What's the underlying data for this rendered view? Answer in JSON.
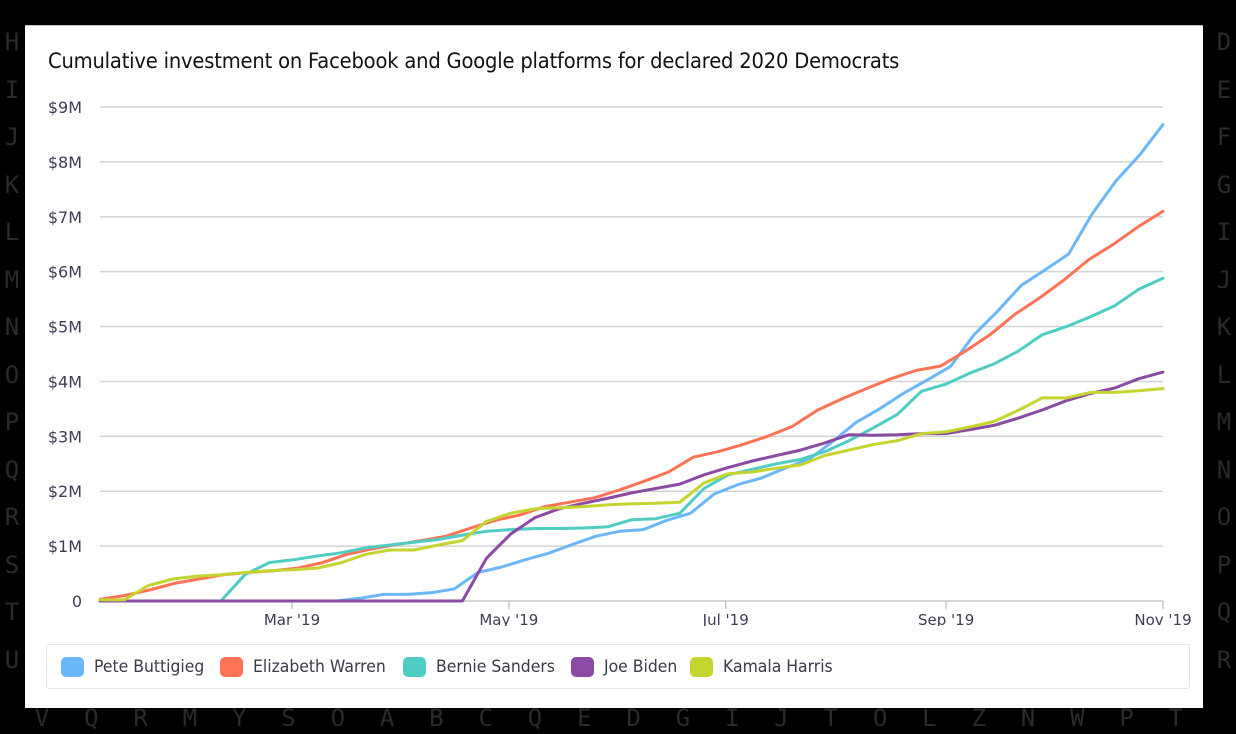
{
  "background_letters": {
    "left": [
      "H",
      "I",
      "J",
      "K",
      "L",
      "M",
      "N",
      "O",
      "P",
      "Q",
      "R",
      "S",
      "T",
      "U"
    ],
    "right": [
      "D",
      "E",
      "F",
      "G",
      "I",
      "J",
      "K",
      "L",
      "M",
      "N",
      "O",
      "P",
      "Q",
      "R"
    ],
    "bottom": [
      "V",
      "Q",
      "R",
      "M",
      "Y",
      "S",
      "O",
      "A",
      "B",
      "C",
      "Q",
      "E",
      "D",
      "G",
      "I",
      "J",
      "T",
      "O",
      "L",
      "Z",
      "N",
      "W",
      "P",
      "T"
    ]
  },
  "chart_data": {
    "type": "line",
    "title": "Cumulative investment on Facebook and Google platforms for declared 2020 Democrats",
    "xlabel": "",
    "ylabel": "",
    "x_unit": "week starting",
    "x_start": "2019-01-06",
    "x_step_days": 7,
    "x_tick_labels": [
      {
        "label": "Mar '19",
        "date": "2019-03-01"
      },
      {
        "label": "May '19",
        "date": "2019-05-01"
      },
      {
        "label": "Jul '19",
        "date": "2019-07-01"
      },
      {
        "label": "Sep '19",
        "date": "2019-09-01"
      },
      {
        "label": "Nov '19",
        "date": "2019-11-01"
      }
    ],
    "y_tick_labels": [
      "0",
      "$1M",
      "$2M",
      "$3M",
      "$4M",
      "$5M",
      "$6M",
      "$7M",
      "$8M",
      "$9M"
    ],
    "ylim": [
      0,
      9
    ],
    "y_unit": "millions USD",
    "grid": true,
    "legend_position": "bottom",
    "series": [
      {
        "name": "Pete Buttigieg",
        "color": "#6bb7fa",
        "values": [
          0,
          0,
          0,
          0,
          0,
          0,
          0,
          0,
          0,
          0,
          0,
          0.05,
          0.12,
          0.12,
          0.15,
          0.22,
          0.52,
          0.62,
          0.75,
          0.87,
          1.03,
          1.18,
          1.27,
          1.3,
          1.47,
          1.6,
          1.95,
          2.12,
          2.24,
          2.42,
          2.58,
          2.9,
          3.25,
          3.5,
          3.78,
          4.02,
          4.27,
          4.85,
          5.28,
          5.75,
          6.03,
          6.32,
          7.05,
          7.65,
          8.12,
          8.68
        ]
      },
      {
        "name": "Elizabeth Warren",
        "color": "#fe7356",
        "values": [
          0.03,
          0.1,
          0.2,
          0.32,
          0.4,
          0.48,
          0.52,
          0.55,
          0.6,
          0.7,
          0.85,
          0.95,
          1.03,
          1.1,
          1.18,
          1.33,
          1.47,
          1.57,
          1.72,
          1.8,
          1.88,
          2.02,
          2.18,
          2.35,
          2.62,
          2.72,
          2.85,
          3.0,
          3.18,
          3.47,
          3.68,
          3.87,
          4.05,
          4.2,
          4.28,
          4.55,
          4.85,
          5.22,
          5.52,
          5.85,
          6.22,
          6.5,
          6.82,
          7.1
        ]
      },
      {
        "name": "Bernie Sanders",
        "color": "#4fcdc4",
        "values": [
          0,
          0,
          0,
          0,
          0,
          0,
          0.48,
          0.7,
          0.75,
          0.82,
          0.88,
          0.97,
          1.02,
          1.07,
          1.12,
          1.2,
          1.27,
          1.3,
          1.32,
          1.32,
          1.33,
          1.35,
          1.48,
          1.5,
          1.6,
          2.05,
          2.3,
          2.4,
          2.5,
          2.58,
          2.72,
          2.92,
          3.15,
          3.4,
          3.82,
          3.95,
          4.15,
          4.32,
          4.55,
          4.85,
          5.0,
          5.18,
          5.38,
          5.68,
          5.88
        ]
      },
      {
        "name": "Joe Biden",
        "color": "#8b4aa3",
        "values": [
          0,
          0,
          0,
          0,
          0,
          0,
          0,
          0,
          0,
          0,
          0,
          0,
          0,
          0,
          0,
          0,
          0.78,
          1.22,
          1.52,
          1.68,
          1.78,
          1.87,
          1.97,
          2.05,
          2.13,
          2.3,
          2.43,
          2.55,
          2.65,
          2.75,
          2.88,
          3.03,
          3.02,
          3.03,
          3.05,
          3.05,
          3.12,
          3.2,
          3.33,
          3.48,
          3.65,
          3.78,
          3.88,
          4.05,
          4.17
        ]
      },
      {
        "name": "Kamala Harris",
        "color": "#c5d530",
        "values": [
          0.02,
          0.02,
          0.28,
          0.4,
          0.45,
          0.48,
          0.52,
          0.55,
          0.57,
          0.6,
          0.7,
          0.85,
          0.93,
          0.93,
          1.02,
          1.1,
          1.45,
          1.6,
          1.68,
          1.7,
          1.72,
          1.75,
          1.77,
          1.78,
          1.8,
          2.15,
          2.32,
          2.35,
          2.42,
          2.48,
          2.65,
          2.75,
          2.85,
          2.92,
          3.05,
          3.08,
          3.17,
          3.27,
          3.47,
          3.7,
          3.7,
          3.8,
          3.8,
          3.83,
          3.87
        ]
      }
    ]
  }
}
